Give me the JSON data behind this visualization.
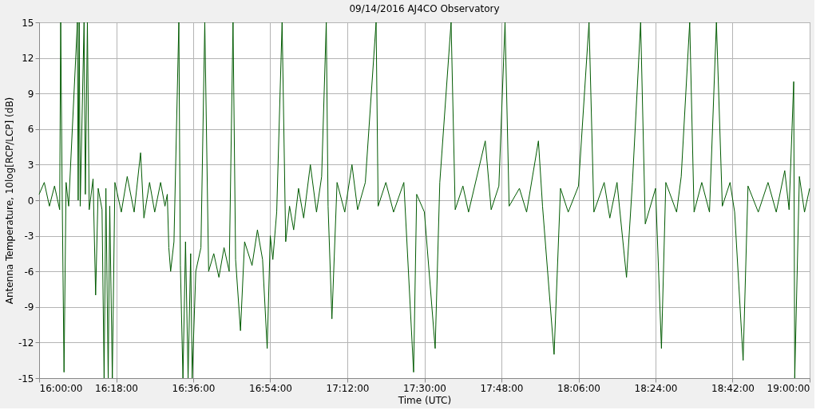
{
  "chart_data": {
    "type": "line",
    "title": "09/14/2016    AJ4CO Observatory",
    "xlabel": "Time (UTC)",
    "ylabel": "Antenna Temperature, 10log[RCP/LCP] (dB)",
    "x": [
      16.0,
      16.02,
      16.04,
      16.06,
      16.08,
      16.084,
      16.09,
      16.097,
      16.105,
      16.115,
      16.149,
      16.152,
      16.156,
      16.16,
      16.175,
      16.18,
      16.188,
      16.195,
      16.21,
      16.22,
      16.23,
      16.245,
      16.253,
      16.26,
      16.269,
      16.275,
      16.285,
      16.295,
      16.32,
      16.343,
      16.37,
      16.395,
      16.408,
      16.43,
      16.45,
      16.473,
      16.49,
      16.499,
      16.505,
      16.512,
      16.525,
      16.544,
      16.55,
      16.56,
      16.57,
      16.58,
      16.59,
      16.596,
      16.61,
      16.63,
      16.645,
      16.66,
      16.68,
      16.7,
      16.72,
      16.74,
      16.755,
      16.765,
      16.784,
      16.8,
      16.829,
      16.85,
      16.87,
      16.888,
      16.9,
      16.91,
      16.925,
      16.946,
      16.96,
      16.975,
      16.991,
      17.01,
      17.03,
      17.056,
      17.08,
      17.1,
      17.118,
      17.125,
      17.14,
      17.16,
      17.19,
      17.218,
      17.24,
      17.27,
      17.312,
      17.32,
      17.35,
      17.38,
      17.42,
      17.458,
      17.47,
      17.5,
      17.542,
      17.56,
      17.604,
      17.62,
      17.65,
      17.672,
      17.737,
      17.76,
      17.79,
      17.814,
      17.83,
      17.87,
      17.898,
      17.944,
      17.96,
      18.005,
      18.03,
      18.06,
      18.1,
      18.141,
      18.16,
      18.2,
      18.222,
      18.25,
      18.287,
      18.31,
      18.342,
      18.36,
      18.4,
      18.423,
      18.44,
      18.482,
      18.5,
      18.533,
      18.55,
      18.58,
      18.61,
      18.637,
      18.66,
      18.69,
      18.708,
      18.741,
      18.76,
      18.8,
      18.838,
      18.87,
      18.903,
      18.92,
      18.938,
      18.942,
      18.96,
      18.98,
      19.0
    ],
    "series": [
      {
        "color": "#005a00",
        "values": [
          0.5,
          1.5,
          -0.5,
          1.2,
          -0.8,
          15,
          0,
          -14.5,
          1.5,
          -0.5,
          15,
          0,
          15,
          -0.5,
          15,
          0.5,
          15,
          -0.8,
          1.8,
          -8,
          1,
          -0.8,
          -15,
          1,
          -15,
          -0.5,
          -15,
          1.5,
          -1,
          2,
          -1,
          4,
          -1.5,
          1.5,
          -1,
          1.5,
          -0.5,
          0.5,
          -4,
          -6,
          -3.5,
          15,
          -5.5,
          -15,
          -3.5,
          -15,
          -4.5,
          -15,
          -6,
          -4,
          15,
          -6,
          -4.5,
          -6.5,
          -4,
          -6,
          15,
          -5,
          -11,
          -3.5,
          -5.5,
          -2.5,
          -5,
          -12.5,
          -3,
          -5,
          -1,
          15,
          -3.5,
          -0.5,
          -2.5,
          1,
          -1.5,
          3,
          -1,
          2,
          15,
          -0.5,
          -10,
          1.5,
          -1,
          3,
          -0.8,
          1.5,
          15,
          -0.5,
          1.5,
          -1,
          1.5,
          -14.5,
          0.5,
          -1,
          -12.5,
          1.5,
          15,
          -0.8,
          1.2,
          -1,
          5,
          -0.8,
          1.2,
          15,
          -0.5,
          1,
          -1,
          5,
          -0.5,
          -13,
          1,
          -1,
          1.2,
          15,
          -1,
          1.5,
          -1.5,
          1.5,
          -6.5,
          1.5,
          15,
          -2,
          1,
          -12.5,
          1.5,
          -1,
          2,
          15,
          -1,
          1.5,
          -1,
          15,
          -0.5,
          1.5,
          -1,
          -13.5,
          1.2,
          -1,
          1.5,
          -1,
          2.5,
          -0.8,
          10,
          -15,
          2,
          -1,
          1
        ]
      }
    ],
    "xlim": [
      16,
      19
    ],
    "xticks": [
      {
        "value": 16,
        "label": "16:00:00"
      },
      {
        "value": 16.3,
        "label": "16:18:00"
      },
      {
        "value": 16.6,
        "label": "16:36:00"
      },
      {
        "value": 16.9,
        "label": "16:54:00"
      },
      {
        "value": 17.2,
        "label": "17:12:00"
      },
      {
        "value": 17.5,
        "label": "17:30:00"
      },
      {
        "value": 17.8,
        "label": "17:48:00"
      },
      {
        "value": 18.1,
        "label": "18:06:00"
      },
      {
        "value": 18.4,
        "label": "18:24:00"
      },
      {
        "value": 18.7,
        "label": "18:42:00"
      },
      {
        "value": 19,
        "label": "19:00:00"
      }
    ],
    "ylim": [
      -15,
      15
    ],
    "yticks": [
      -15,
      -12,
      -9,
      -6,
      -3,
      0,
      3,
      6,
      9,
      12,
      15
    ],
    "grid": true,
    "legend": false,
    "marker": "none",
    "line_style": "solid"
  }
}
